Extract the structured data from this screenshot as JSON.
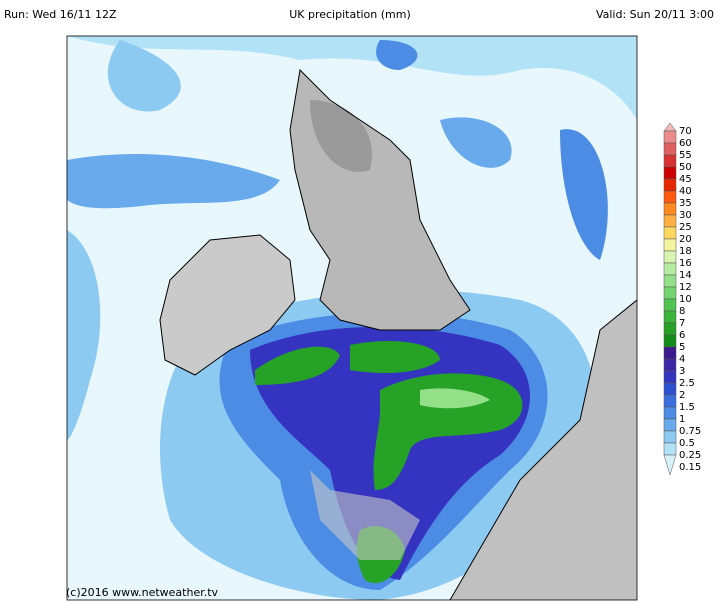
{
  "header": {
    "run": "Run: Wed 16/11 12Z",
    "title": "UK precipitation (mm)",
    "valid": "Valid: Sun 20/11 3:00"
  },
  "legend": {
    "items": [
      {
        "label": "70",
        "color": "#f4b8b8"
      },
      {
        "label": "60",
        "color": "#ec8c8c"
      },
      {
        "label": "55",
        "color": "#e06060"
      },
      {
        "label": "50",
        "color": "#d83030"
      },
      {
        "label": "45",
        "color": "#cc0000"
      },
      {
        "label": "40",
        "color": "#e82800"
      },
      {
        "label": "35",
        "color": "#ff5a10"
      },
      {
        "label": "30",
        "color": "#ff8a20"
      },
      {
        "label": "25",
        "color": "#ffb040"
      },
      {
        "label": "20",
        "color": "#ffd860"
      },
      {
        "label": "18",
        "color": "#f4f4a0"
      },
      {
        "label": "16",
        "color": "#d8f4b0"
      },
      {
        "label": "14",
        "color": "#b4eca0"
      },
      {
        "label": "12",
        "color": "#94e088"
      },
      {
        "label": "10",
        "color": "#74d470"
      },
      {
        "label": "8",
        "color": "#52c452"
      },
      {
        "label": "7",
        "color": "#3cb43c"
      },
      {
        "label": "6",
        "color": "#26a226"
      },
      {
        "label": "5",
        "color": "#168c18"
      },
      {
        "label": "4",
        "color": "#3a1a8c"
      },
      {
        "label": "3",
        "color": "#3c26a8"
      },
      {
        "label": "2.5",
        "color": "#3434c0"
      },
      {
        "label": "2",
        "color": "#2c50d0"
      },
      {
        "label": "1.5",
        "color": "#3a6ede"
      },
      {
        "label": "1",
        "color": "#4c8ce4"
      },
      {
        "label": "0.75",
        "color": "#68aaec"
      },
      {
        "label": "0.5",
        "color": "#8ccaf2"
      },
      {
        "label": "0.25",
        "color": "#b2e2f6"
      },
      {
        "label": "0.15",
        "color": "#d8f2fa"
      }
    ]
  },
  "footer": {
    "copyright": "(c)2016 www.netweather.tv"
  }
}
